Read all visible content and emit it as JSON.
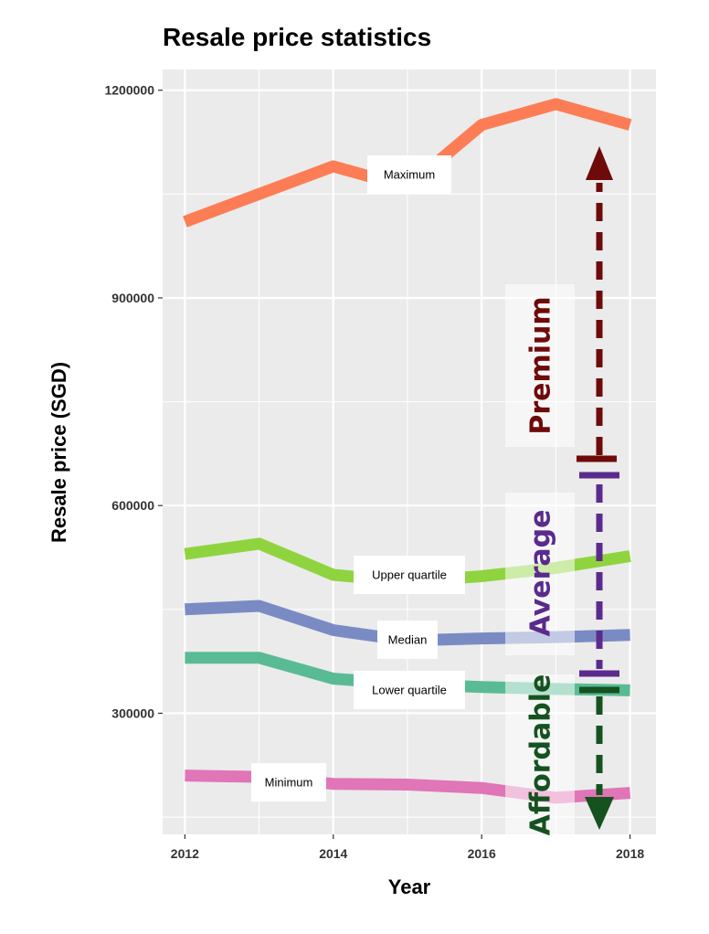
{
  "chart_data": {
    "type": "line",
    "title": "Resale price statistics",
    "xlabel": "Year",
    "ylabel": "Resale price (SGD)",
    "x": [
      2012,
      2013,
      2014,
      2015,
      2016,
      2017,
      2018
    ],
    "x_ticks": [
      "2012",
      "2014",
      "2016",
      "2018"
    ],
    "y_ticks": [
      "300000",
      "600000",
      "900000",
      "1200000"
    ],
    "xlim": [
      2011.7,
      2018.35
    ],
    "ylim": [
      125000,
      1230000
    ],
    "grid": true,
    "series": [
      {
        "name": "Maximum",
        "color": "#fc7d55",
        "values": [
          1010000,
          1050000,
          1090000,
          1060000,
          1150000,
          1180000,
          1150000
        ]
      },
      {
        "name": "Upper quartile",
        "color": "#8fd43f",
        "values": [
          530000,
          545000,
          500000,
          490000,
          498000,
          510000,
          527000
        ]
      },
      {
        "name": "Median",
        "color": "#7a8bc4",
        "values": [
          450000,
          455000,
          420000,
          405000,
          408000,
          410000,
          413000
        ]
      },
      {
        "name": "Lower quartile",
        "color": "#59bb94",
        "values": [
          380000,
          380000,
          350000,
          342000,
          338000,
          335000,
          333000
        ]
      },
      {
        "name": "Minimum",
        "color": "#e075b7",
        "values": [
          210000,
          208000,
          198000,
          197000,
          192000,
          178000,
          185000
        ]
      }
    ],
    "annotations": [
      {
        "text": "Premium",
        "color": "#6e0a0a"
      },
      {
        "text": "Average",
        "color": "#5a2b8c"
      },
      {
        "text": "Affordable",
        "color": "#15521f"
      }
    ]
  }
}
